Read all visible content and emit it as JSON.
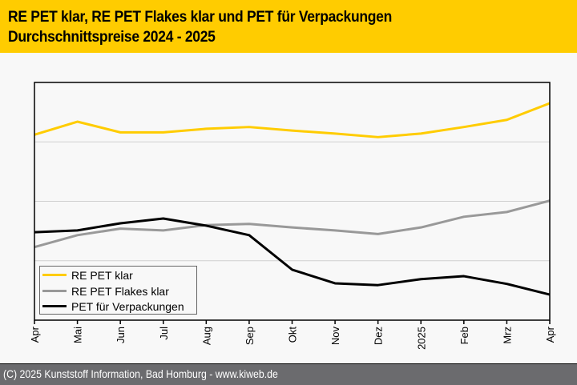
{
  "header": {
    "title_line1": "RE PET klar, RE PET Flakes klar und PET für Verpackungen",
    "title_line2": "Durchschnittspreise 2024 - 2025"
  },
  "footer": {
    "text": "(C) 2025 Kunststoff Information, Bad Homburg - www.kiweb.de"
  },
  "colors": {
    "header_bg": "#ffcc00",
    "footer_bg": "#6b6b6e",
    "series_1": "#ffcc00",
    "series_2": "#999999",
    "series_3": "#000000"
  },
  "chart_data": {
    "type": "line",
    "title": "RE PET klar, RE PET Flakes klar und PET für Verpackungen Durchschnittspreise 2024 - 2025",
    "xlabel": "",
    "ylabel": "",
    "categories": [
      "Apr",
      "Mai",
      "Jun",
      "Jul",
      "Aug",
      "Sep",
      "Okt",
      "Nov",
      "Dez",
      "2025",
      "Feb",
      "Mrz",
      "Apr"
    ],
    "ylim": [
      0,
      4
    ],
    "y_gridlines": [
      1,
      2,
      3
    ],
    "y_unit": "relative (no y-axis labels shown)",
    "grid": true,
    "legend_position": "bottom-left",
    "series": [
      {
        "name": "RE PET klar",
        "color": "#ffcc00",
        "values": [
          3.12,
          3.34,
          3.16,
          3.16,
          3.22,
          3.25,
          3.19,
          3.14,
          3.08,
          3.14,
          3.25,
          3.37,
          3.65
        ]
      },
      {
        "name": "RE PET Flakes klar",
        "color": "#999999",
        "values": [
          1.23,
          1.43,
          1.54,
          1.51,
          1.6,
          1.62,
          1.56,
          1.51,
          1.45,
          1.56,
          1.74,
          1.82,
          2.01
        ]
      },
      {
        "name": "PET für Verpackungen",
        "color": "#000000",
        "values": [
          1.48,
          1.51,
          1.63,
          1.71,
          1.59,
          1.43,
          0.85,
          0.62,
          0.59,
          0.69,
          0.74,
          0.61,
          0.43
        ]
      }
    ]
  }
}
